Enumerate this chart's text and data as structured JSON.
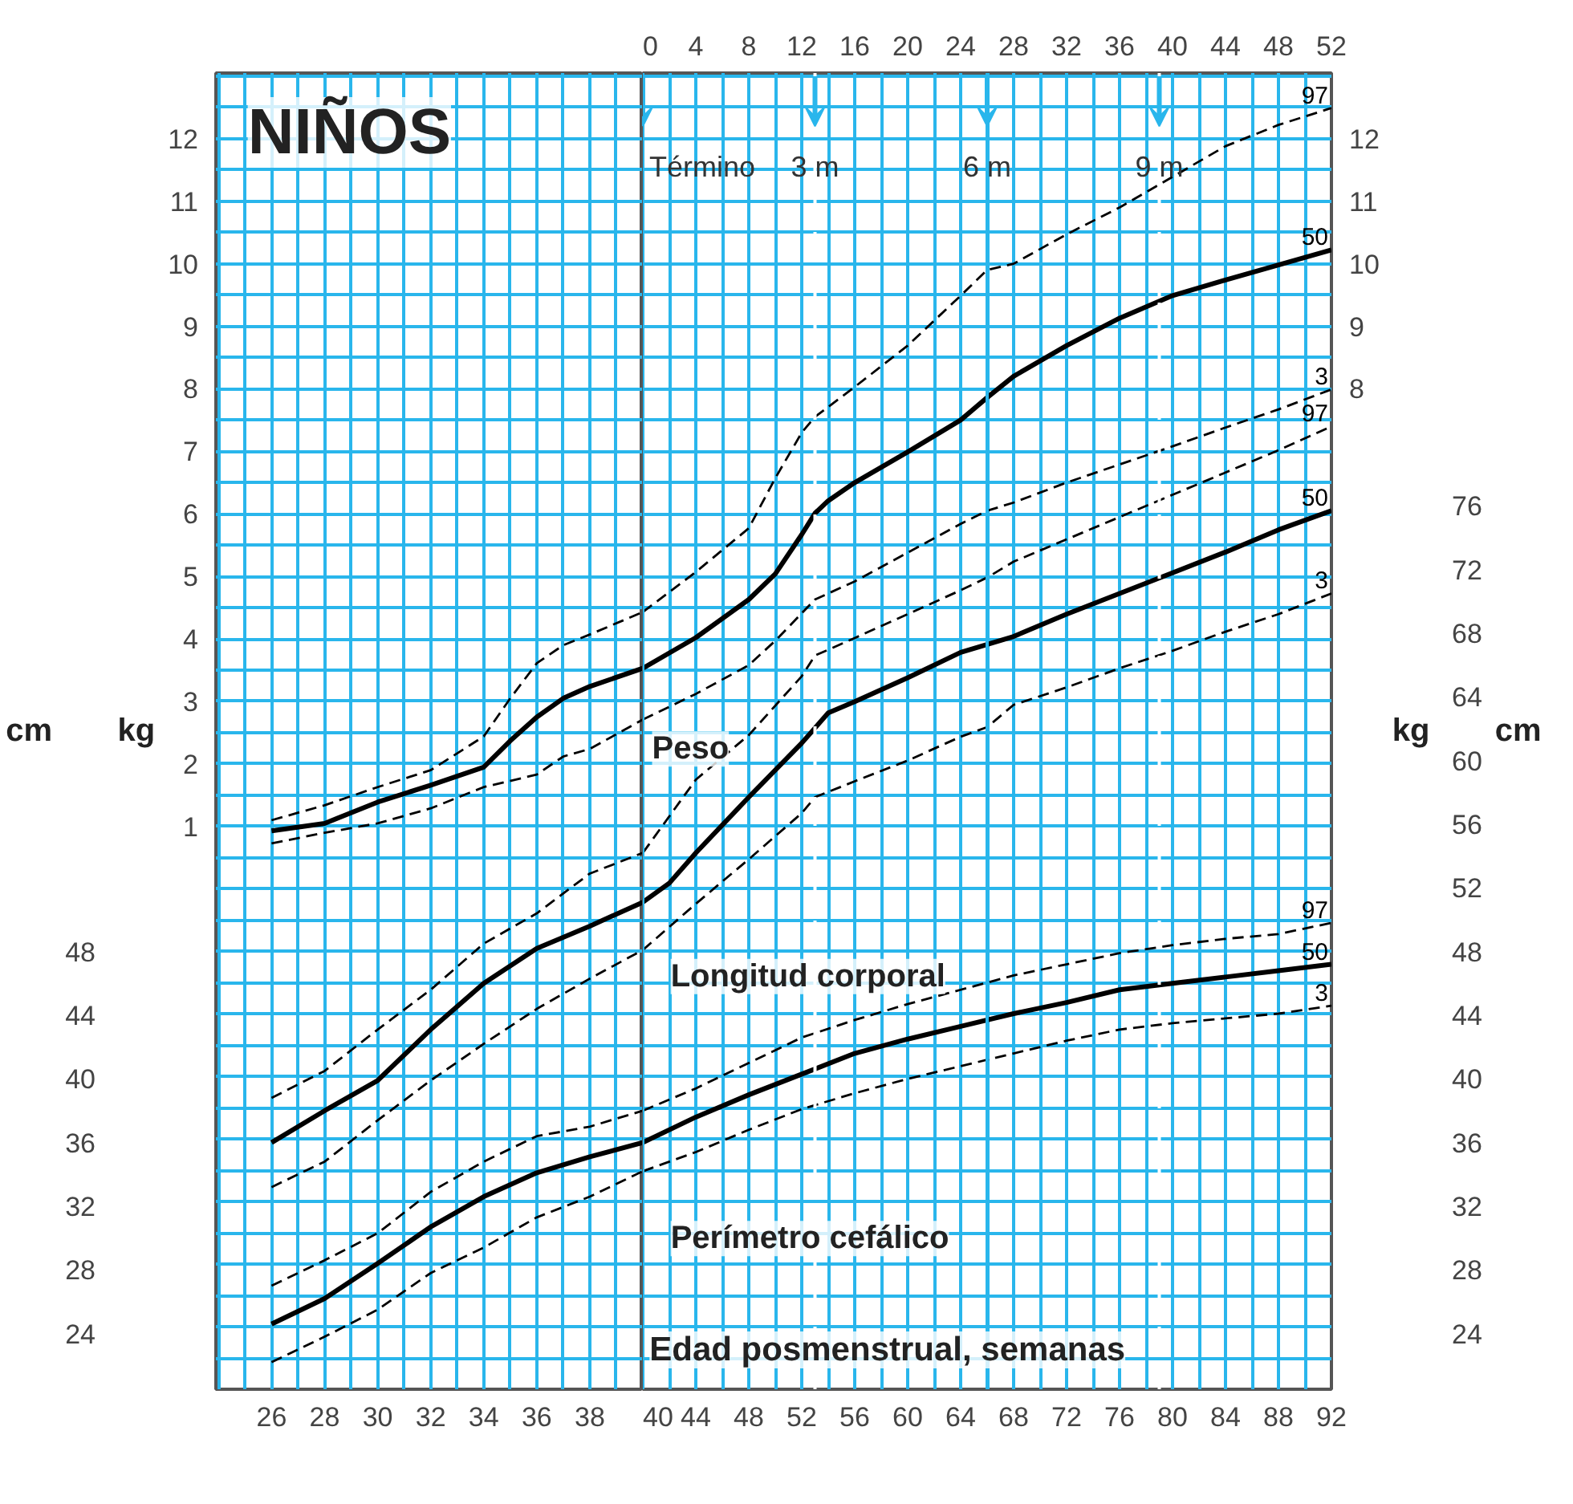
{
  "chart_data": [
    {
      "type": "line",
      "title": "NIÑOS",
      "ylabel": "kg",
      "y2label": "cm",
      "xlim": [
        23.9,
        40
      ],
      "xticks": [
        26,
        28,
        30,
        32,
        34,
        36,
        38
      ],
      "ylim": [
        -8.0,
        13.05
      ],
      "yticks": [
        1,
        2,
        3,
        4,
        5,
        6,
        7,
        8,
        9,
        10,
        11,
        12
      ],
      "y2lim": [
        20.5,
        103.2
      ],
      "y2ticks": [
        24,
        28,
        32,
        36,
        40,
        44,
        48
      ],
      "grid": true,
      "series": [
        {
          "color": "#000000",
          "axis": "y",
          "line_style": "dashed",
          "x": [
            26,
            28,
            30,
            32,
            34,
            35,
            36,
            37,
            38,
            40
          ],
          "values": [
            1.1,
            1.34,
            1.63,
            1.9,
            2.44,
            3.05,
            3.61,
            3.9,
            4.07,
            4.43
          ]
        },
        {
          "color": "#000000",
          "axis": "y",
          "line_style": "solid",
          "x": [
            26,
            28,
            30,
            32,
            34,
            35,
            36,
            37,
            38,
            40
          ],
          "values": [
            0.93,
            1.05,
            1.39,
            1.66,
            1.95,
            2.37,
            2.75,
            3.05,
            3.24,
            3.53
          ]
        },
        {
          "color": "#000000",
          "axis": "y",
          "line_style": "dashed",
          "x": [
            26,
            28,
            30,
            32,
            34,
            36,
            37,
            38,
            40
          ],
          "values": [
            0.73,
            0.9,
            1.05,
            1.29,
            1.63,
            1.83,
            2.12,
            2.24,
            2.71
          ]
        },
        {
          "color": "#000000",
          "axis": "y2",
          "line_style": "dashed",
          "x": [
            26,
            28,
            30,
            32,
            34,
            36,
            38,
            40
          ],
          "values": [
            38.8,
            40.5,
            43.1,
            45.6,
            48.5,
            50.4,
            52.9,
            54.2
          ]
        },
        {
          "color": "#000000",
          "axis": "y2",
          "line_style": "solid",
          "x": [
            26,
            28,
            30,
            32,
            34,
            36,
            38,
            40
          ],
          "values": [
            36.0,
            38.0,
            39.9,
            43.1,
            46.0,
            48.2,
            49.6,
            51.1
          ]
        },
        {
          "color": "#000000",
          "axis": "y2",
          "line_style": "dashed",
          "x": [
            26,
            28,
            30,
            32,
            34,
            36,
            38,
            40
          ],
          "values": [
            33.2,
            34.8,
            37.4,
            39.9,
            42.2,
            44.4,
            46.3,
            48.1
          ]
        },
        {
          "color": "#000000",
          "axis": "y2",
          "line_style": "dashed",
          "x": [
            26,
            28,
            30,
            32,
            34,
            36,
            38,
            40
          ],
          "values": [
            27.0,
            28.6,
            30.3,
            32.9,
            34.8,
            36.4,
            37.0,
            38.0
          ]
        },
        {
          "color": "#000000",
          "axis": "y2",
          "line_style": "solid",
          "x": [
            26,
            28,
            30,
            32,
            34,
            36,
            38,
            40
          ],
          "values": [
            24.6,
            26.2,
            28.4,
            30.7,
            32.6,
            34.1,
            35.1,
            36.0
          ]
        },
        {
          "color": "#000000",
          "axis": "y2",
          "line_style": "dashed",
          "x": [
            26,
            28,
            30,
            32,
            34,
            36,
            38,
            40
          ],
          "values": [
            22.2,
            23.8,
            25.5,
            27.8,
            29.4,
            31.3,
            32.6,
            34.2
          ]
        }
      ]
    },
    {
      "type": "line",
      "xlabel": "Edad posmenstrual, semanas",
      "ylabel": "kg",
      "y2label": "cm",
      "annotations": [
        "Peso",
        "Longitud corporal",
        "Perímetro cefálico"
      ],
      "xlim": [
        40,
        92
      ],
      "xticks": [
        40,
        44,
        48,
        52,
        56,
        60,
        64,
        68,
        72,
        76,
        80,
        84,
        88,
        92
      ],
      "x2lim": [
        0,
        52
      ],
      "x2ticks": [
        0,
        4,
        8,
        12,
        16,
        20,
        24,
        28,
        32,
        36,
        40,
        44,
        48,
        52
      ],
      "ylim": [
        -8.0,
        13.05
      ],
      "yticks": [
        8,
        9,
        10,
        11,
        12
      ],
      "y2lim": [
        20.5,
        103.2
      ],
      "y2ticks": [
        24,
        28,
        32,
        36,
        40,
        44,
        48,
        52,
        56,
        60,
        64,
        68,
        72,
        76
      ],
      "grid": true,
      "ref_lines": [
        {
          "axis": "x2",
          "value": 0,
          "label": "Término",
          "color": "#29b6ec",
          "line_style": "solid"
        },
        {
          "axis": "x2",
          "value": 13,
          "label": "3 m",
          "color": "#ffffff",
          "line_style": "dashed"
        },
        {
          "axis": "x2",
          "value": 26,
          "label": "6 m",
          "color": "#29b6ec",
          "line_style": "solid"
        },
        {
          "axis": "x2",
          "value": 39,
          "label": "9 m",
          "color": "#ffffff",
          "line_style": "dashed"
        }
      ],
      "series": [
        {
          "name": "97",
          "color": "#000000",
          "axis": "y",
          "line_style": "dashed",
          "x": [
            40,
            44,
            48,
            50,
            52,
            53,
            56,
            60,
            64,
            66,
            68,
            72,
            76,
            80,
            84,
            88,
            92
          ],
          "values": [
            4.43,
            5.07,
            5.77,
            6.57,
            7.3,
            7.55,
            8.03,
            8.69,
            9.49,
            9.9,
            10.0,
            10.47,
            10.9,
            11.39,
            11.88,
            12.22,
            12.49
          ]
        },
        {
          "name": "50",
          "color": "#000000",
          "axis": "y",
          "line_style": "solid",
          "x": [
            40,
            44,
            48,
            50,
            52,
            53,
            54,
            56,
            60,
            64,
            66,
            68,
            72,
            76,
            80,
            84,
            88,
            92
          ],
          "values": [
            3.53,
            4.02,
            4.63,
            5.04,
            5.67,
            6.01,
            6.21,
            6.5,
            6.99,
            7.5,
            7.86,
            8.2,
            8.69,
            9.13,
            9.49,
            9.74,
            9.98,
            10.22
          ]
        },
        {
          "name": "3",
          "color": "#000000",
          "axis": "y",
          "line_style": "dashed",
          "x": [
            40,
            44,
            48,
            50,
            53,
            56,
            60,
            64,
            66,
            68,
            72,
            76,
            80,
            84,
            88,
            92
          ],
          "values": [
            2.71,
            3.12,
            3.58,
            3.97,
            4.63,
            4.92,
            5.38,
            5.84,
            6.05,
            6.18,
            6.5,
            6.79,
            7.08,
            7.38,
            7.67,
            7.99
          ]
        },
        {
          "name": "97",
          "color": "#000000",
          "axis": "y2",
          "line_style": "dashed",
          "x": [
            40,
            44,
            48,
            52,
            53,
            56,
            60,
            64,
            66,
            68,
            72,
            76,
            80,
            84,
            88,
            92
          ],
          "values": [
            54.2,
            58.8,
            61.6,
            65.3,
            66.6,
            67.7,
            69.2,
            70.7,
            71.5,
            72.5,
            73.9,
            75.3,
            76.7,
            78.1,
            79.5,
            81.0
          ]
        },
        {
          "name": "50",
          "color": "#000000",
          "axis": "y2",
          "line_style": "solid",
          "x": [
            40,
            42,
            44,
            48,
            52,
            54,
            56,
            60,
            64,
            68,
            72,
            76,
            80,
            84,
            88,
            92
          ],
          "values": [
            51.1,
            52.3,
            54.2,
            57.7,
            61.1,
            63.0,
            63.7,
            65.2,
            66.8,
            67.8,
            69.2,
            70.5,
            71.8,
            73.1,
            74.5,
            75.7
          ]
        },
        {
          "name": "3",
          "color": "#000000",
          "axis": "y2",
          "line_style": "dashed",
          "x": [
            40,
            44,
            48,
            52,
            53,
            56,
            60,
            64,
            66,
            68,
            72,
            76,
            80,
            84,
            88,
            92
          ],
          "values": [
            48.1,
            51.0,
            53.8,
            56.7,
            57.7,
            58.7,
            60.0,
            61.5,
            62.1,
            63.5,
            64.6,
            65.8,
            66.9,
            68.1,
            69.2,
            70.5
          ]
        },
        {
          "name": "97",
          "color": "#000000",
          "axis": "y2",
          "line_style": "dashed",
          "x": [
            40,
            44,
            48,
            52,
            56,
            60,
            64,
            68,
            72,
            76,
            80,
            84,
            88,
            92
          ],
          "values": [
            38.0,
            39.4,
            41.0,
            42.6,
            43.7,
            44.7,
            45.6,
            46.5,
            47.2,
            47.9,
            48.4,
            48.8,
            49.1,
            49.8
          ]
        },
        {
          "name": "50",
          "color": "#000000",
          "axis": "y2",
          "line_style": "solid",
          "x": [
            40,
            44,
            48,
            52,
            56,
            60,
            64,
            68,
            72,
            76,
            80,
            84,
            88,
            92
          ],
          "values": [
            36.0,
            37.6,
            39.0,
            40.3,
            41.6,
            42.5,
            43.3,
            44.1,
            44.8,
            45.6,
            46.0,
            46.4,
            46.8,
            47.2
          ]
        },
        {
          "name": "3",
          "color": "#000000",
          "axis": "y2",
          "line_style": "dashed",
          "x": [
            40,
            44,
            48,
            52,
            56,
            60,
            64,
            68,
            72,
            76,
            80,
            84,
            88,
            92
          ],
          "values": [
            34.2,
            35.4,
            36.8,
            38.1,
            39.1,
            40.0,
            40.8,
            41.6,
            42.4,
            43.1,
            43.5,
            43.8,
            44.1,
            44.6
          ]
        }
      ]
    }
  ]
}
